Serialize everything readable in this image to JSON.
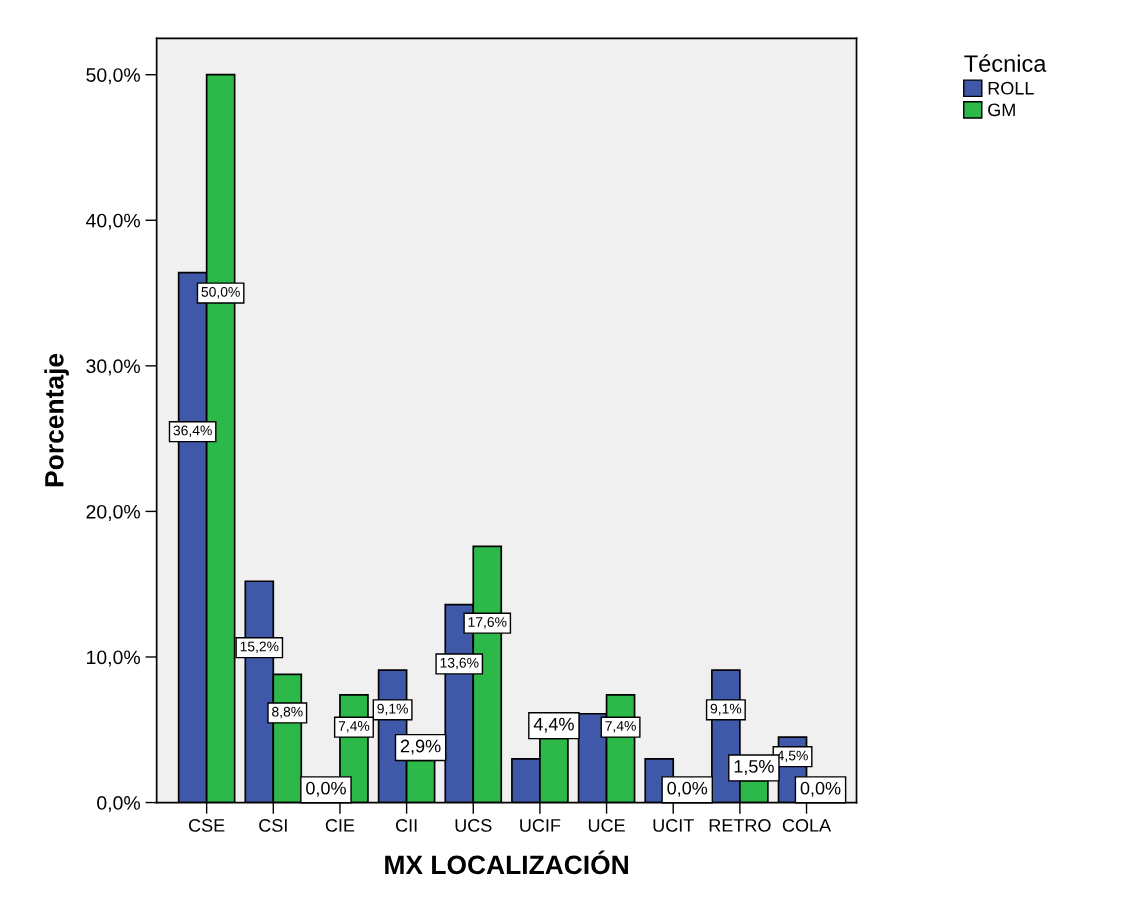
{
  "chart_data": {
    "type": "bar",
    "xlabel": "MX LOCALIZACIÓN",
    "ylabel": "Porcentaje",
    "legend_title": "Técnica",
    "legend": "right",
    "grid": false,
    "categories": [
      "CSE",
      "CSI",
      "CIE",
      "CII",
      "UCS",
      "UCIF",
      "UCE",
      "UCIT",
      "RETRO",
      "COLA"
    ],
    "series": [
      {
        "name": "ROLL",
        "color": "#3f58a8",
        "values": [
          36.4,
          15.2,
          0.0,
          9.1,
          13.6,
          3.0,
          6.1,
          3.0,
          9.1,
          4.5
        ],
        "value_labels": [
          "36,4%",
          "15,2%",
          "0,0%",
          "9,1%",
          "13,6%",
          null,
          null,
          null,
          "9,1%",
          "4,5%"
        ]
      },
      {
        "name": "GM",
        "color": "#2db84a",
        "values": [
          50.0,
          8.8,
          7.4,
          2.9,
          17.6,
          4.4,
          7.4,
          0.0,
          1.5,
          0.0
        ],
        "value_labels": [
          "50,0%",
          "8,8%",
          "7,4%",
          "2,9%",
          "17,6%",
          "4,4%",
          "7,4%",
          "0,0%",
          "1,5%",
          "0,0%"
        ]
      }
    ],
    "ylim": [
      0,
      52.5
    ],
    "yticks": [
      {
        "value": 0,
        "label": "0,0%"
      },
      {
        "value": 10,
        "label": "10,0%"
      },
      {
        "value": 20,
        "label": "20,0%"
      },
      {
        "value": 30,
        "label": "30,0%"
      },
      {
        "value": 40,
        "label": "40,0%"
      },
      {
        "value": 50,
        "label": "50,0%"
      }
    ]
  }
}
